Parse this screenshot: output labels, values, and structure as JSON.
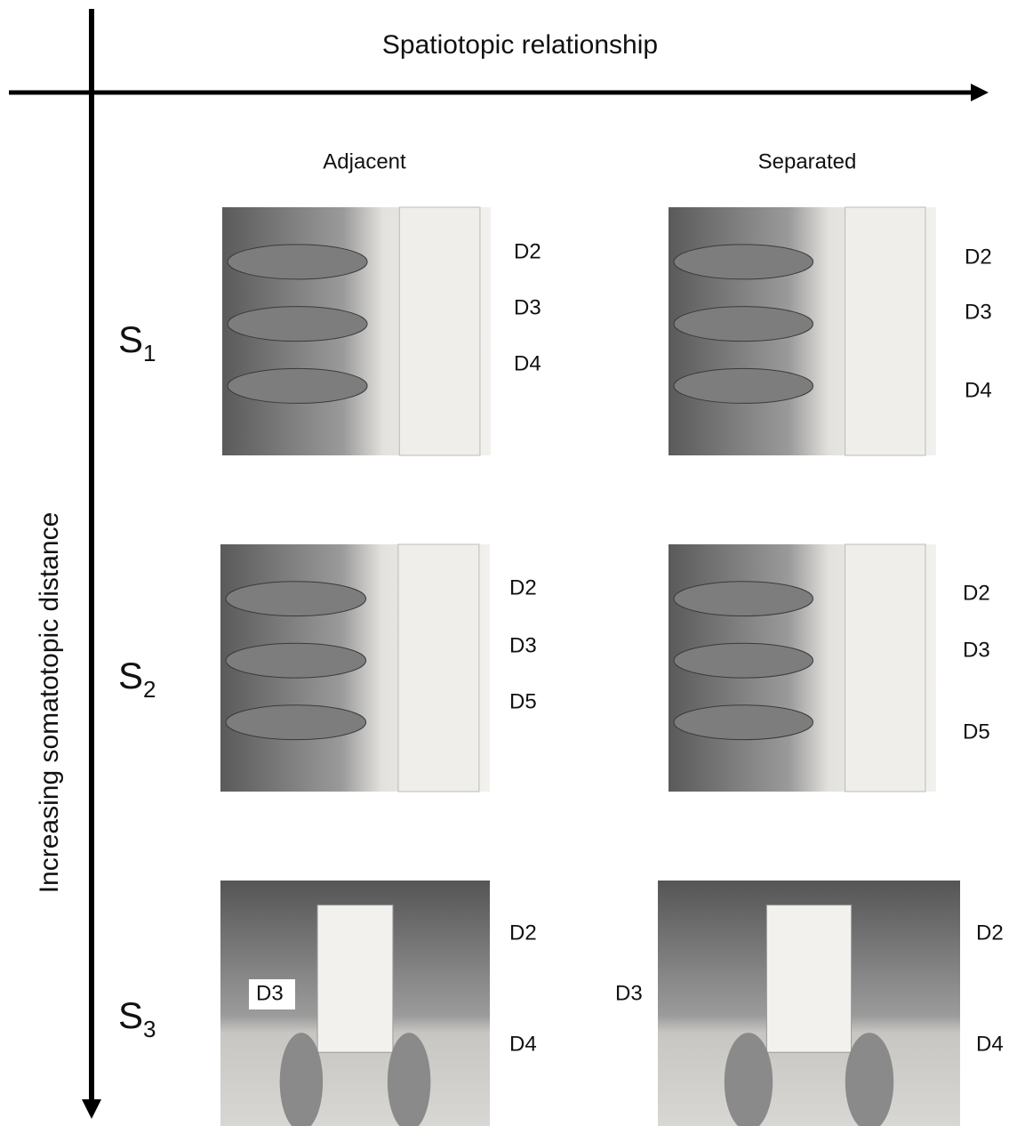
{
  "axes": {
    "x_label": "Spatiotopic relationship",
    "y_label": "Increasing somatotopic distance"
  },
  "columns": [
    "Adjacent",
    "Separated"
  ],
  "rows": [
    {
      "label": "S",
      "subscript": "1",
      "adjacent": [
        "D2",
        "D3",
        "D4"
      ],
      "separated": [
        "D2",
        "D3",
        "D4"
      ]
    },
    {
      "label": "S",
      "subscript": "2",
      "adjacent": [
        "D2",
        "D3",
        "D5"
      ],
      "separated": [
        "D2",
        "D3",
        "D5"
      ]
    },
    {
      "label": "S",
      "subscript": "3",
      "adjacent": [
        "D2",
        "D3",
        "D4"
      ],
      "separated": [
        "D2",
        "D3",
        "D4"
      ]
    }
  ]
}
